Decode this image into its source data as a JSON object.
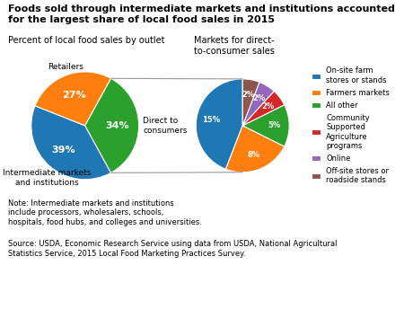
{
  "chart_data": [
    {
      "type": "pie",
      "title": "Foods sold through intermediate markets and institutions accounted\nfor the largest share of local food sales in 2015",
      "subtitle": "Percent of local food sales by outlet",
      "categories": [
        "Intermediate markets\nand institutions",
        "Retailers",
        "Direct to\nconsumers"
      ],
      "values": [
        39,
        27,
        34
      ],
      "value_labels": [
        "39%",
        "27%",
        "34%"
      ],
      "data_labels": true,
      "annotations": [
        "Note: Intermediate markets and institutions\ninclude processors, wholesalers, schools,\nhospitals, food hubs, and colleges and universities.",
        "Source: USDA, Economic Research Service using data from USDA, National Agricultural\nStatistics Service, 2015 Local Food Marketing Practices Survey."
      ]
    },
    {
      "type": "pie",
      "subtitle": "Markets for direct-\nto-consumer sales",
      "categories": [
        "On-site farm\nstores or stands",
        "Farmers markets",
        "All other",
        "Community\nSupported\nAgriculture\nprograms",
        "Online",
        "Off-site stores or\nroadside stands"
      ],
      "values": [
        15,
        8,
        5,
        2,
        2,
        2
      ],
      "value_labels": [
        "15%",
        "8%",
        "5%",
        "2%",
        "2%",
        "2%"
      ],
      "data_labels": true,
      "legend": "center left"
    }
  ]
}
